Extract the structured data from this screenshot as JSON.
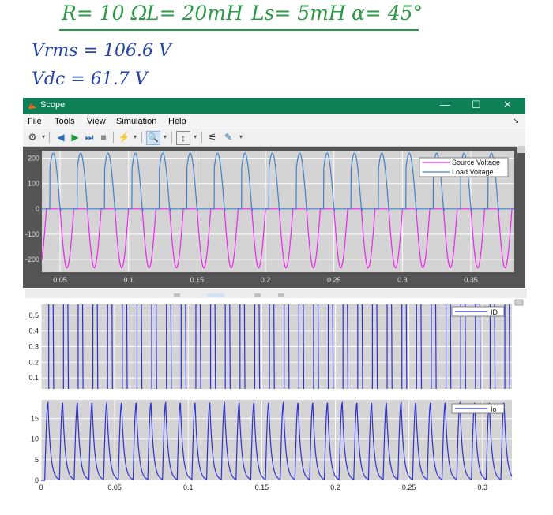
{
  "notes": {
    "params": [
      "R= 10 Ω",
      "L= 20mH",
      "Ls= 5mH",
      "α= 45°"
    ],
    "vrms": "Vrms = 106.6 V",
    "vdc": "Vdc = 61.7 V"
  },
  "window": {
    "title": "Scope",
    "controls": {
      "minimize": "—",
      "maximize": "☐",
      "close": "✕"
    }
  },
  "menu": {
    "items": [
      "File",
      "Tools",
      "View",
      "Simulation",
      "Help"
    ],
    "dock_symbol": "↘"
  },
  "toolbar": {
    "buttons": [
      {
        "icon": "settings-gear-icon",
        "glyph": "⚙"
      },
      {
        "icon": "step-back-icon",
        "glyph": "◀"
      },
      {
        "icon": "run-icon",
        "glyph": "▶"
      },
      {
        "icon": "step-forward-icon",
        "glyph": "⏭"
      },
      {
        "icon": "stop-icon",
        "glyph": "■"
      },
      {
        "icon": "highlight-signal-icon",
        "glyph": "⚡"
      },
      {
        "icon": "zoom-in-icon",
        "glyph": "🔍"
      },
      {
        "icon": "autoscale-icon",
        "glyph": "↕"
      },
      {
        "icon": "trigger-icon",
        "glyph": "⚟"
      },
      {
        "icon": "cursor-measure-icon",
        "glyph": "✎"
      }
    ]
  },
  "colors": {
    "source": "#ee22ee",
    "load": "#3f7fc8",
    "id": "#2f2fd8",
    "io": "#2f2fd8",
    "axes_bg": "#d4d4d4",
    "scope_bg": "#ffffff",
    "dark_frame": "#555555"
  },
  "chart_data": [
    {
      "type": "line",
      "x_ticks": [
        "0.05",
        "0.1",
        "0.15",
        "0.2",
        "0.25",
        "0.3",
        "0.35"
      ],
      "y_ticks": [
        "200",
        "100",
        "0",
        "-100",
        "-200"
      ],
      "xlim": [
        0.0367,
        0.3817
      ],
      "ylim": [
        -250,
        230
      ],
      "legend_position": "top-right",
      "grid": true,
      "series": [
        {
          "name": "Source Voltage",
          "amplitude": 233,
          "frequency": 50,
          "shape": "negative half-wave rectified sine"
        },
        {
          "name": "Load Voltage",
          "amplitude": 220,
          "frequency": 50,
          "firing_angle_deg": 45,
          "shape": "controlled rectifier output"
        }
      ]
    },
    {
      "type": "line",
      "y_ticks": [
        "0.5",
        "0.4",
        "0.3",
        "0.2",
        "0.1"
      ],
      "ylim": [
        0.03,
        0.57
      ],
      "xlim": [
        0,
        0.32
      ],
      "legend_position": "top-right",
      "grid": true,
      "series": [
        {
          "name": "ID",
          "peak": 0.57,
          "frequency": 50,
          "shape": "narrow square pulses"
        }
      ]
    },
    {
      "type": "line",
      "x_ticks": [
        "0",
        "0.05",
        "0.1",
        "0.15",
        "0.2",
        "0.25",
        "0.3"
      ],
      "y_ticks": [
        "15",
        "10",
        "5",
        "0"
      ],
      "xlim": [
        0,
        0.32
      ],
      "ylim": [
        0,
        19.5
      ],
      "legend_position": "top-right",
      "grid": true,
      "series": [
        {
          "name": "Io",
          "peak": 18.8,
          "frequency": 50,
          "shape": "pulsed current with exponential decay"
        }
      ]
    }
  ]
}
